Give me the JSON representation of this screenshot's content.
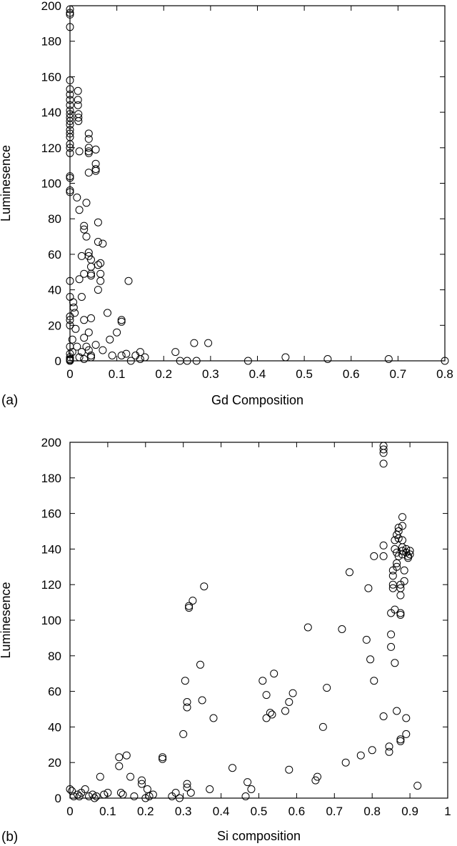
{
  "chart_data": [
    {
      "type": "scatter",
      "panel_label": "(a)",
      "xlabel": "Gd Composition",
      "ylabel": "Luminesence",
      "xlim": [
        0,
        0.8
      ],
      "ylim": [
        0,
        200
      ],
      "xticks": [
        "0",
        "0.1",
        "0.2",
        "0.3",
        "0.4",
        "0.5",
        "0.6",
        "0.7",
        "0.8"
      ],
      "yticks": [
        "0",
        "20",
        "40",
        "60",
        "80",
        "100",
        "120",
        "140",
        "160",
        "180",
        "200"
      ],
      "points": [
        [
          0,
          198
        ],
        [
          0,
          196
        ],
        [
          0,
          195
        ],
        [
          0,
          188
        ],
        [
          0,
          158
        ],
        [
          0,
          153
        ],
        [
          0,
          150
        ],
        [
          0,
          147
        ],
        [
          0,
          144
        ],
        [
          0,
          141
        ],
        [
          0,
          139
        ],
        [
          0,
          137
        ],
        [
          0,
          135
        ],
        [
          0,
          133
        ],
        [
          0,
          130
        ],
        [
          0,
          128
        ],
        [
          0,
          126
        ],
        [
          0,
          122
        ],
        [
          0,
          120
        ],
        [
          0,
          117
        ],
        [
          0,
          104
        ],
        [
          0,
          103
        ],
        [
          0,
          96
        ],
        [
          0,
          95
        ],
        [
          0,
          45
        ],
        [
          0,
          36
        ],
        [
          0,
          25
        ],
        [
          0,
          23
        ],
        [
          0,
          20
        ],
        [
          0,
          8
        ],
        [
          0,
          4
        ],
        [
          0,
          2
        ],
        [
          0,
          1
        ],
        [
          0,
          0.5
        ],
        [
          0,
          0
        ],
        [
          0.005,
          12
        ],
        [
          0.005,
          5
        ],
        [
          0.007,
          33
        ],
        [
          0.008,
          30
        ],
        [
          0.01,
          27
        ],
        [
          0.012,
          18
        ],
        [
          0.015,
          8
        ],
        [
          0.02,
          2
        ],
        [
          0.017,
          152
        ],
        [
          0.017,
          147
        ],
        [
          0.017,
          144
        ],
        [
          0.018,
          139
        ],
        [
          0.018,
          137
        ],
        [
          0.018,
          135
        ],
        [
          0.02,
          118
        ],
        [
          0.015,
          92
        ],
        [
          0.02,
          85
        ],
        [
          0.025,
          59
        ],
        [
          0.02,
          46
        ],
        [
          0.03,
          49
        ],
        [
          0.025,
          36
        ],
        [
          0.03,
          23
        ],
        [
          0.03,
          13
        ],
        [
          0.035,
          8
        ],
        [
          0.025,
          5
        ],
        [
          0.03,
          1
        ],
        [
          0.03,
          76
        ],
        [
          0.03,
          74
        ],
        [
          0.035,
          70
        ],
        [
          0.035,
          89
        ],
        [
          0.04,
          128
        ],
        [
          0.04,
          125
        ],
        [
          0.04,
          120
        ],
        [
          0.04,
          118
        ],
        [
          0.04,
          117
        ],
        [
          0.04,
          106
        ],
        [
          0.04,
          61
        ],
        [
          0.04,
          59
        ],
        [
          0.045,
          57
        ],
        [
          0.045,
          53
        ],
        [
          0.045,
          49
        ],
        [
          0.045,
          48
        ],
        [
          0.045,
          24
        ],
        [
          0.04,
          16
        ],
        [
          0.04,
          6
        ],
        [
          0.045,
          3
        ],
        [
          0.045,
          2
        ],
        [
          0.055,
          119
        ],
        [
          0.055,
          111
        ],
        [
          0.055,
          108
        ],
        [
          0.055,
          107
        ],
        [
          0.055,
          9
        ],
        [
          0.06,
          78
        ],
        [
          0.06,
          67
        ],
        [
          0.06,
          54
        ],
        [
          0.06,
          40
        ],
        [
          0.07,
          66
        ],
        [
          0.065,
          55
        ],
        [
          0.065,
          49
        ],
        [
          0.065,
          45
        ],
        [
          0.07,
          6
        ],
        [
          0.08,
          27
        ],
        [
          0.085,
          12
        ],
        [
          0.09,
          3
        ],
        [
          0.1,
          16
        ],
        [
          0.11,
          23
        ],
        [
          0.11,
          22
        ],
        [
          0.11,
          3
        ],
        [
          0.12,
          4
        ],
        [
          0.125,
          45
        ],
        [
          0.13,
          0
        ],
        [
          0.14,
          3
        ],
        [
          0.15,
          5
        ],
        [
          0.15,
          1
        ],
        [
          0.16,
          2
        ],
        [
          0.225,
          5
        ],
        [
          0.235,
          0
        ],
        [
          0.25,
          0
        ],
        [
          0.265,
          10
        ],
        [
          0.27,
          0
        ],
        [
          0.295,
          10
        ],
        [
          0.38,
          0
        ],
        [
          0.46,
          2
        ],
        [
          0.55,
          1
        ],
        [
          0.68,
          1
        ],
        [
          0.8,
          0
        ]
      ]
    },
    {
      "type": "scatter",
      "panel_label": "(b)",
      "xlabel": "Si composition",
      "ylabel": "Luminesence",
      "xlim": [
        0,
        1
      ],
      "ylim": [
        0,
        200
      ],
      "xticks": [
        "0",
        "0.1",
        "0.2",
        "0.3",
        "0.4",
        "0.5",
        "0.6",
        "0.7",
        "0.8",
        "0.9",
        "1"
      ],
      "yticks": [
        "0",
        "20",
        "40",
        "60",
        "80",
        "100",
        "120",
        "140",
        "160",
        "180",
        "200"
      ],
      "points": [
        [
          0,
          5
        ],
        [
          0.005,
          4
        ],
        [
          0.01,
          1
        ],
        [
          0.02,
          2
        ],
        [
          0.025,
          1
        ],
        [
          0.03,
          3
        ],
        [
          0.04,
          5
        ],
        [
          0.05,
          1
        ],
        [
          0.06,
          2
        ],
        [
          0.065,
          0
        ],
        [
          0.07,
          1
        ],
        [
          0.08,
          12
        ],
        [
          0.09,
          2
        ],
        [
          0.1,
          3
        ],
        [
          0.13,
          23
        ],
        [
          0.13,
          18
        ],
        [
          0.135,
          3
        ],
        [
          0.14,
          2
        ],
        [
          0.15,
          24
        ],
        [
          0.16,
          12
        ],
        [
          0.17,
          1
        ],
        [
          0.19,
          10
        ],
        [
          0.19,
          8
        ],
        [
          0.2,
          0
        ],
        [
          0.205,
          5
        ],
        [
          0.21,
          1
        ],
        [
          0.22,
          2
        ],
        [
          0.245,
          22
        ],
        [
          0.245,
          23
        ],
        [
          0.27,
          1
        ],
        [
          0.28,
          3
        ],
        [
          0.29,
          0
        ],
        [
          0.3,
          36
        ],
        [
          0.305,
          66
        ],
        [
          0.31,
          54
        ],
        [
          0.31,
          51
        ],
        [
          0.31,
          8
        ],
        [
          0.31,
          6
        ],
        [
          0.315,
          107
        ],
        [
          0.315,
          108
        ],
        [
          0.32,
          3
        ],
        [
          0.325,
          111
        ],
        [
          0.345,
          75
        ],
        [
          0.35,
          55
        ],
        [
          0.355,
          119
        ],
        [
          0.37,
          5
        ],
        [
          0.38,
          45
        ],
        [
          0.43,
          17
        ],
        [
          0.47,
          9
        ],
        [
          0.48,
          5
        ],
        [
          0.465,
          1
        ],
        [
          0.51,
          66
        ],
        [
          0.52,
          58
        ],
        [
          0.52,
          45
        ],
        [
          0.53,
          48
        ],
        [
          0.535,
          47
        ],
        [
          0.54,
          70
        ],
        [
          0.57,
          49
        ],
        [
          0.58,
          54
        ],
        [
          0.58,
          16
        ],
        [
          0.59,
          59
        ],
        [
          0.63,
          96
        ],
        [
          0.65,
          10
        ],
        [
          0.655,
          12
        ],
        [
          0.67,
          40
        ],
        [
          0.68,
          62
        ],
        [
          0.72,
          95
        ],
        [
          0.73,
          20
        ],
        [
          0.74,
          127
        ],
        [
          0.77,
          24
        ],
        [
          0.785,
          89
        ],
        [
          0.79,
          118
        ],
        [
          0.795,
          78
        ],
        [
          0.8,
          27
        ],
        [
          0.805,
          136
        ],
        [
          0.805,
          66
        ],
        [
          0.83,
          196
        ],
        [
          0.83,
          198
        ],
        [
          0.83,
          194
        ],
        [
          0.83,
          188
        ],
        [
          0.83,
          142
        ],
        [
          0.83,
          136
        ],
        [
          0.83,
          46
        ],
        [
          0.845,
          26
        ],
        [
          0.845,
          29
        ],
        [
          0.85,
          92
        ],
        [
          0.85,
          85
        ],
        [
          0.85,
          104
        ],
        [
          0.855,
          125
        ],
        [
          0.855,
          128
        ],
        [
          0.855,
          120
        ],
        [
          0.855,
          118
        ],
        [
          0.86,
          76
        ],
        [
          0.86,
          106
        ],
        [
          0.86,
          145
        ],
        [
          0.86,
          140
        ],
        [
          0.865,
          148
        ],
        [
          0.865,
          138
        ],
        [
          0.865,
          132
        ],
        [
          0.865,
          130
        ],
        [
          0.865,
          49
        ],
        [
          0.87,
          152
        ],
        [
          0.87,
          150
        ],
        [
          0.87,
          146
        ],
        [
          0.87,
          136
        ],
        [
          0.875,
          120
        ],
        [
          0.875,
          118
        ],
        [
          0.875,
          114
        ],
        [
          0.875,
          104
        ],
        [
          0.875,
          103
        ],
        [
          0.875,
          32
        ],
        [
          0.875,
          33
        ],
        [
          0.88,
          158
        ],
        [
          0.88,
          153
        ],
        [
          0.88,
          145
        ],
        [
          0.88,
          141
        ],
        [
          0.88,
          139
        ],
        [
          0.88,
          137
        ],
        [
          0.885,
          128
        ],
        [
          0.885,
          122
        ],
        [
          0.89,
          36
        ],
        [
          0.89,
          45
        ],
        [
          0.89,
          140
        ],
        [
          0.89,
          138
        ],
        [
          0.895,
          136
        ],
        [
          0.895,
          135
        ],
        [
          0.9,
          137
        ],
        [
          0.9,
          139
        ],
        [
          0.92,
          7
        ]
      ]
    }
  ]
}
